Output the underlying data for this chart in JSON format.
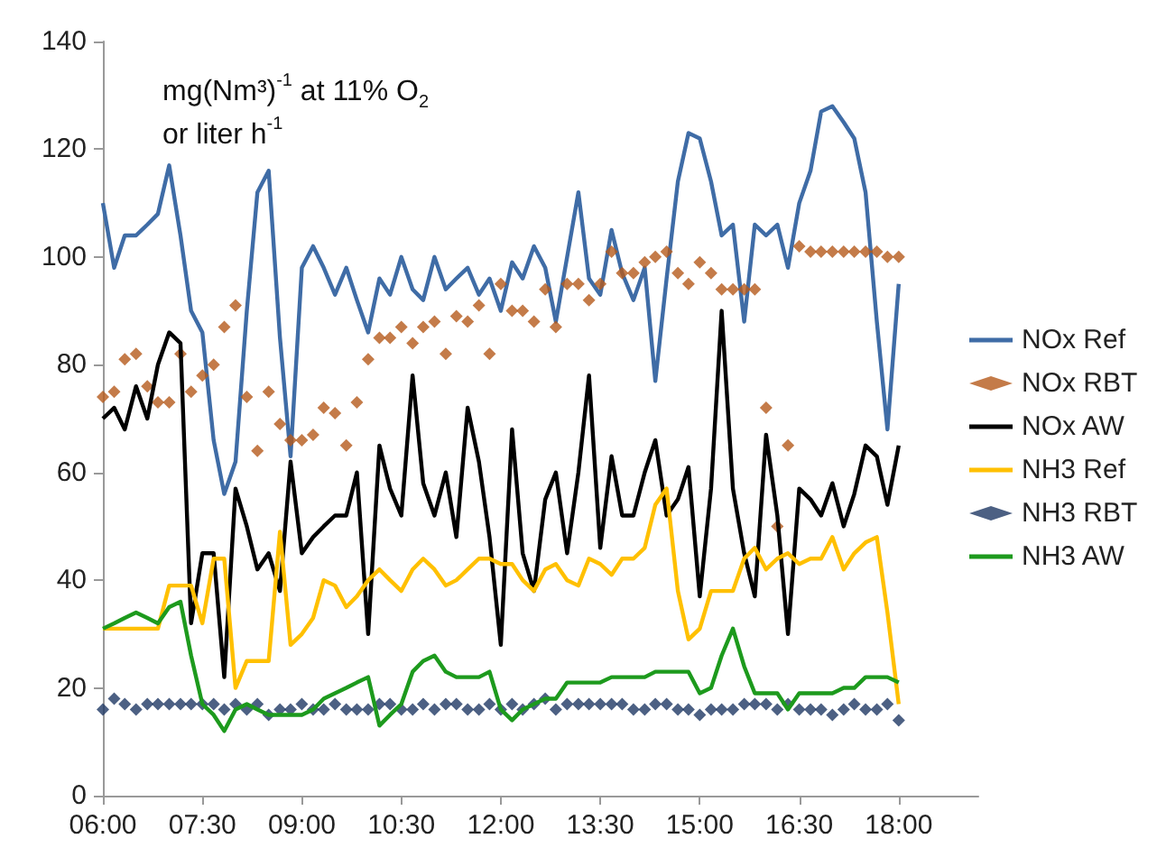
{
  "chart_data": {
    "type": "line",
    "annotations": [
      "mg(Nm³)$^{-1}$ at 11% O$_{2}$",
      "or liter h$^{-1}$"
    ],
    "x": [
      6,
      6.17,
      6.33,
      6.5,
      6.67,
      6.83,
      7,
      7.17,
      7.33,
      7.5,
      7.67,
      7.83,
      8,
      8.17,
      8.33,
      8.5,
      8.67,
      8.83,
      9,
      9.17,
      9.33,
      9.5,
      9.67,
      9.83,
      10,
      10.17,
      10.33,
      10.5,
      10.67,
      10.83,
      11,
      11.17,
      11.33,
      11.5,
      11.67,
      11.83,
      12,
      12.17,
      12.33,
      12.5,
      12.67,
      12.83,
      13,
      13.17,
      13.33,
      13.5,
      13.67,
      13.83,
      14,
      14.17,
      14.33,
      14.5,
      14.67,
      14.83,
      15,
      15.17,
      15.33,
      15.5,
      15.67,
      15.83,
      16,
      16.17,
      16.33,
      16.5,
      16.67,
      16.83,
      17,
      17.17,
      17.33,
      17.5,
      17.67,
      17.83,
      18
    ],
    "series": [
      {
        "name": "NOx Ref",
        "type": "line",
        "color": "#3f6ca6",
        "values": [
          110,
          98,
          104,
          104,
          106,
          108,
          117,
          104,
          90,
          86,
          66,
          56,
          62,
          90,
          112,
          116,
          85,
          63,
          98,
          102,
          98,
          93,
          98,
          92,
          86,
          96,
          93,
          100,
          94,
          92,
          100,
          94,
          96,
          98,
          93,
          96,
          90,
          99,
          96,
          102,
          98,
          88,
          100,
          112,
          96,
          93,
          105,
          97,
          92,
          98,
          77,
          96,
          114,
          123,
          122,
          114,
          104,
          106,
          88,
          106,
          104,
          106,
          98,
          110,
          116,
          127,
          128,
          125,
          122,
          112,
          88,
          68,
          95
        ]
      },
      {
        "name": "NOx RBT",
        "type": "scatter",
        "marker": "diamond",
        "color": "#b55a1c",
        "values": [
          74,
          75,
          81,
          82,
          76,
          73,
          73,
          82,
          75,
          78,
          80,
          87,
          91,
          74,
          64,
          75,
          69,
          66,
          66,
          67,
          72,
          71,
          65,
          73,
          81,
          85,
          85,
          87,
          84,
          87,
          88,
          82,
          89,
          88,
          91,
          82,
          95,
          90,
          90,
          88,
          94,
          87,
          95,
          95,
          92,
          95,
          101,
          97,
          97,
          99,
          100,
          101,
          97,
          95,
          99,
          97,
          94,
          94,
          94,
          94,
          72,
          50,
          65,
          102,
          101,
          101,
          101,
          101,
          101,
          101,
          101,
          100,
          100
        ]
      },
      {
        "name": "NOx AW",
        "type": "line",
        "color": "#000000",
        "values": [
          70,
          72,
          68,
          76,
          70,
          80,
          86,
          84,
          32,
          45,
          45,
          22,
          57,
          50,
          42,
          45,
          38,
          62,
          45,
          48,
          50,
          52,
          52,
          60,
          30,
          65,
          57,
          52,
          78,
          58,
          52,
          60,
          48,
          72,
          62,
          48,
          28,
          68,
          45,
          38,
          55,
          60,
          45,
          60,
          78,
          46,
          63,
          52,
          52,
          60,
          66,
          52,
          55,
          61,
          37,
          57,
          90,
          57,
          45,
          37,
          67,
          52,
          30,
          57,
          55,
          52,
          58,
          50,
          56,
          65,
          63,
          54,
          65
        ]
      },
      {
        "name": "NH3 Ref",
        "type": "line",
        "color": "#ffc000",
        "values": [
          31,
          31,
          31,
          31,
          31,
          31,
          39,
          39,
          39,
          32,
          44,
          44,
          20,
          25,
          25,
          25,
          49,
          28,
          30,
          33,
          40,
          39,
          35,
          37,
          40,
          42,
          40,
          38,
          42,
          44,
          42,
          39,
          40,
          42,
          44,
          44,
          43,
          43,
          40,
          38,
          42,
          43,
          40,
          39,
          44,
          43,
          41,
          44,
          44,
          46,
          54,
          57,
          38,
          29,
          31,
          38,
          38,
          38,
          44,
          46,
          42,
          44,
          45,
          43,
          44,
          44,
          48,
          42,
          45,
          47,
          48,
          34,
          17
        ]
      },
      {
        "name": "NH3 RBT",
        "type": "scatter",
        "marker": "diamond",
        "color": "#1f3864",
        "values": [
          16,
          18,
          17,
          16,
          17,
          17,
          17,
          17,
          17,
          17,
          17,
          16,
          17,
          16,
          17,
          15,
          16,
          16,
          17,
          16,
          16,
          17,
          16,
          16,
          16,
          17,
          17,
          16,
          16,
          17,
          16,
          17,
          17,
          16,
          16,
          17,
          16,
          17,
          16,
          17,
          18,
          16,
          17,
          17,
          17,
          17,
          17,
          17,
          16,
          16,
          17,
          17,
          16,
          16,
          15,
          16,
          16,
          16,
          17,
          17,
          17,
          16,
          17,
          16,
          16,
          16,
          15,
          16,
          17,
          16,
          16,
          17,
          14
        ]
      },
      {
        "name": "NH3 AW",
        "type": "line",
        "color": "#1d9a1d",
        "values": [
          31,
          32,
          33,
          34,
          33,
          32,
          35,
          36,
          26,
          17,
          15,
          12,
          16,
          17,
          16,
          15,
          15,
          15,
          15,
          16,
          18,
          19,
          20,
          21,
          22,
          13,
          15,
          17,
          23,
          25,
          26,
          23,
          22,
          22,
          22,
          23,
          16,
          14,
          16,
          17,
          18,
          18,
          21,
          21,
          21,
          21,
          22,
          22,
          22,
          22,
          23,
          23,
          23,
          23,
          19,
          20,
          26,
          31,
          24,
          19,
          19,
          19,
          16,
          19,
          19,
          19,
          19,
          20,
          20,
          22,
          22,
          22,
          21
        ]
      }
    ],
    "xlim": [
      6,
      19.2
    ],
    "xticks": [
      {
        "value": 6,
        "label": "06:00"
      },
      {
        "value": 7.5,
        "label": "07:30"
      },
      {
        "value": 9,
        "label": "09:00"
      },
      {
        "value": 10.5,
        "label": "10:30"
      },
      {
        "value": 12,
        "label": "12:00"
      },
      {
        "value": 13.5,
        "label": "13:30"
      },
      {
        "value": 15,
        "label": "15:00"
      },
      {
        "value": 16.5,
        "label": "16:30"
      },
      {
        "value": 18,
        "label": "18:00"
      }
    ],
    "ylim": [
      0,
      140
    ],
    "yticks": [
      0,
      20,
      40,
      60,
      80,
      100,
      120,
      140
    ],
    "grid": false,
    "legend": "right"
  }
}
